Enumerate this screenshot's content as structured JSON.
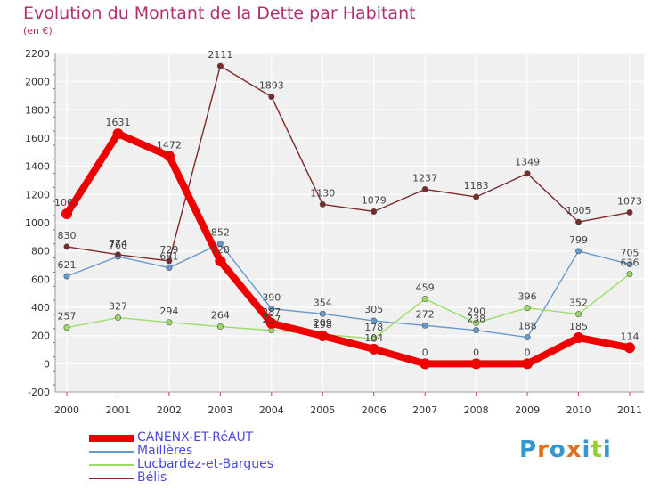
{
  "chart_data": {
    "type": "line",
    "title": "Evolution du Montant de la Dette par Habitant",
    "subtitle": "(en €)",
    "xlabel": "",
    "ylabel": "",
    "ylim": [
      -200,
      2200
    ],
    "y_ticks": [
      -200,
      0,
      200,
      400,
      600,
      800,
      1000,
      1200,
      1400,
      1600,
      1800,
      2000,
      2200
    ],
    "x": [
      "2000",
      "2001",
      "2002",
      "2003",
      "2004",
      "2005",
      "2006",
      "2007",
      "2008",
      "2009",
      "2010",
      "2011"
    ],
    "grid": true,
    "legend_position": "bottom-left",
    "series": [
      {
        "name": "CANENX-ET-RéAUT",
        "color": "#ee0000",
        "values": [
          1063,
          1631,
          1472,
          728,
          287,
          198,
          104,
          0,
          0,
          0,
          185,
          114
        ],
        "labels": [
          "1063",
          "1631",
          "1472",
          "728",
          "287",
          "198",
          "104",
          "0",
          "0",
          "0",
          "185",
          "114"
        ]
      },
      {
        "name": "Maillères",
        "color": "#6699cc",
        "values": [
          621,
          760,
          681,
          852,
          390,
          354,
          305,
          272,
          238,
          188,
          799,
          705
        ],
        "labels": [
          "621",
          "760",
          "681",
          "852",
          "390",
          "354",
          "305",
          "272",
          "238",
          "188",
          "799",
          "705"
        ]
      },
      {
        "name": "Lucbardez-et-Bargues",
        "color": "#99dd66",
        "values": [
          257,
          327,
          294,
          264,
          237,
          209,
          178,
          459,
          290,
          396,
          352,
          636
        ],
        "labels": [
          "257",
          "327",
          "294",
          "264",
          "237",
          "209",
          "178",
          "459",
          "290",
          "396",
          "352",
          "636"
        ]
      },
      {
        "name": "Bélis",
        "color": "#7a2a2a",
        "values": [
          830,
          774,
          729,
          2111,
          1893,
          1130,
          1079,
          1237,
          1183,
          1349,
          1005,
          1073
        ],
        "labels": [
          "830",
          "774",
          "729",
          "2111",
          "1893",
          "1130",
          "1079",
          "1237",
          "1183",
          "1349",
          "1005",
          "1073"
        ]
      }
    ]
  },
  "logo": {
    "text": "Proxiti",
    "colors": [
      "#3399cc",
      "#e07020",
      "#3399cc",
      "#e07020",
      "#3399cc",
      "#99cc33",
      "#3399cc"
    ]
  }
}
